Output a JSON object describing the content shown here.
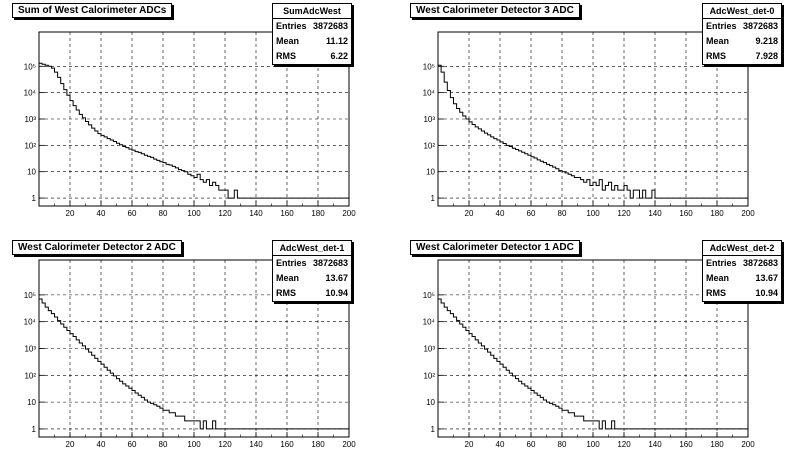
{
  "footer_text": "",
  "chart_data": [
    {
      "type": "histogram",
      "title": "Sum of West Calorimeter ADCs",
      "stats": {
        "name": "SumAdcWest",
        "entries_label": "Entries",
        "entries": "3872683",
        "mean_label": "Mean",
        "mean": "11.12",
        "rms_label": "RMS",
        "rms": "6.22"
      },
      "x_range": [
        0,
        200
      ],
      "y_range": [
        0.5,
        2000000
      ],
      "y_scale": "log",
      "x_ticks": [
        "20",
        "40",
        "60",
        "80",
        "100",
        "120",
        "140",
        "160",
        "180",
        "200"
      ],
      "y_ticks": [
        1,
        10,
        100,
        1000,
        10000,
        100000
      ],
      "y_tick_labels": [
        "1",
        "10",
        "10²",
        "10³",
        "10⁴",
        "10⁵"
      ],
      "grid": true,
      "bin_width": 2,
      "values": [
        130000,
        120000,
        110000,
        100000,
        85000,
        60000,
        38000,
        22000,
        13000,
        8000,
        5000,
        3200,
        2200,
        1500,
        1100,
        800,
        600,
        450,
        350,
        280,
        240,
        210,
        180,
        160,
        140,
        120,
        105,
        90,
        82,
        72,
        66,
        58,
        54,
        48,
        42,
        38,
        35,
        30,
        27,
        24,
        22,
        19,
        18,
        16,
        14,
        12,
        11,
        10,
        8,
        7,
        6,
        8,
        5,
        4,
        5,
        3,
        4,
        3,
        2,
        2,
        2,
        1,
        1,
        2,
        1,
        1,
        1,
        1,
        1,
        1,
        1,
        1,
        1,
        1,
        1,
        1,
        1,
        1,
        1,
        1,
        1,
        1,
        1,
        1,
        1,
        1,
        1,
        1,
        1,
        1,
        1,
        1,
        1,
        1,
        1,
        1,
        1,
        1,
        1,
        1
      ]
    },
    {
      "type": "histogram",
      "title": "West Calorimeter Detector 3 ADC",
      "stats": {
        "name": "AdcWest_det-0",
        "entries_label": "Entries",
        "entries": "3872683",
        "mean_label": "Mean",
        "mean": "9.218",
        "rms_label": "RMS",
        "rms": "7.928"
      },
      "x_range": [
        0,
        200
      ],
      "y_range": [
        0.5,
        2000000
      ],
      "y_scale": "log",
      "x_ticks": [
        "20",
        "40",
        "60",
        "80",
        "100",
        "120",
        "140",
        "160",
        "180",
        "200"
      ],
      "y_ticks": [
        1,
        10,
        100,
        1000,
        10000,
        100000
      ],
      "y_tick_labels": [
        "1",
        "10",
        "10²",
        "10³",
        "10⁴",
        "10⁵"
      ],
      "grid": true,
      "bin_width": 2,
      "values": [
        110000,
        60000,
        25000,
        12000,
        6500,
        3800,
        2500,
        1800,
        1300,
        1000,
        780,
        620,
        500,
        420,
        350,
        290,
        250,
        210,
        180,
        160,
        135,
        118,
        100,
        90,
        78,
        70,
        62,
        55,
        48,
        42,
        37,
        33,
        28,
        25,
        22,
        19,
        17,
        15,
        13,
        11,
        10,
        9,
        8,
        7,
        6,
        6,
        5,
        4,
        5,
        3,
        4,
        3,
        5,
        2,
        3,
        4,
        2,
        3,
        2,
        2,
        3,
        2,
        1,
        2,
        2,
        1,
        2,
        1,
        1,
        2,
        1,
        1,
        1,
        1,
        1,
        1,
        1,
        1,
        1,
        1,
        1,
        1,
        1,
        1,
        1,
        1,
        1,
        1,
        1,
        1,
        1,
        1,
        1,
        1,
        1,
        1,
        1,
        1,
        1,
        1
      ]
    },
    {
      "type": "histogram",
      "title": "West Calorimeter Detector 2 ADC",
      "stats": {
        "name": "AdcWest_det-1",
        "entries_label": "Entries",
        "entries": "3872683",
        "mean_label": "Mean",
        "mean": "13.67",
        "rms_label": "RMS",
        "rms": "10.94"
      },
      "x_range": [
        0,
        200
      ],
      "y_range": [
        0.5,
        2000000
      ],
      "y_scale": "log",
      "x_ticks": [
        "20",
        "40",
        "60",
        "80",
        "100",
        "120",
        "140",
        "160",
        "180",
        "200"
      ],
      "y_ticks": [
        1,
        10,
        100,
        1000,
        10000,
        100000
      ],
      "y_tick_labels": [
        "1",
        "10",
        "10²",
        "10³",
        "10⁴",
        "10⁵"
      ],
      "grid": true,
      "bin_width": 2,
      "values": [
        70000,
        50000,
        35000,
        26000,
        20000,
        15000,
        11000,
        8200,
        6200,
        4700,
        3600,
        2800,
        2100,
        1600,
        1250,
        950,
        730,
        560,
        430,
        330,
        260,
        200,
        155,
        120,
        95,
        75,
        60,
        48,
        40,
        33,
        27,
        22,
        18,
        15,
        12,
        10,
        9,
        8,
        7,
        6,
        5,
        5,
        4,
        4,
        3,
        3,
        3,
        2,
        2,
        2,
        2,
        2,
        1,
        2,
        1,
        1,
        2,
        1,
        1,
        1,
        1,
        1,
        1,
        1,
        1,
        1,
        1,
        1,
        1,
        1,
        1,
        1,
        1,
        1,
        1,
        1,
        1,
        1,
        1,
        1,
        1,
        1,
        1,
        1,
        1,
        1,
        1,
        1,
        1,
        1,
        1,
        1,
        1,
        1,
        1,
        1,
        1,
        1,
        1,
        1
      ]
    },
    {
      "type": "histogram",
      "title": "West Calorimeter Detector 1 ADC",
      "stats": {
        "name": "AdcWest_det-2",
        "entries_label": "Entries",
        "entries": "3872683",
        "mean_label": "Mean",
        "mean": "13.67",
        "rms_label": "RMS",
        "rms": "10.94"
      },
      "x_range": [
        0,
        200
      ],
      "y_range": [
        0.5,
        2000000
      ],
      "y_scale": "log",
      "x_ticks": [
        "20",
        "40",
        "60",
        "80",
        "100",
        "120",
        "140",
        "160",
        "180",
        "200"
      ],
      "y_ticks": [
        1,
        10,
        100,
        1000,
        10000,
        100000
      ],
      "y_tick_labels": [
        "1",
        "10",
        "10²",
        "10³",
        "10⁴",
        "10⁵"
      ],
      "grid": true,
      "bin_width": 2,
      "values": [
        70000,
        50000,
        35000,
        26000,
        20000,
        15000,
        11000,
        8200,
        6200,
        4700,
        3600,
        2800,
        2100,
        1600,
        1250,
        950,
        730,
        560,
        430,
        330,
        260,
        200,
        155,
        120,
        95,
        75,
        60,
        48,
        40,
        33,
        27,
        22,
        18,
        15,
        12,
        10,
        9,
        8,
        7,
        6,
        5,
        5,
        4,
        4,
        3,
        3,
        3,
        2,
        2,
        2,
        2,
        2,
        1,
        2,
        1,
        1,
        2,
        1,
        1,
        1,
        1,
        1,
        1,
        1,
        1,
        1,
        1,
        1,
        1,
        1,
        1,
        1,
        1,
        1,
        1,
        1,
        1,
        1,
        1,
        1,
        1,
        1,
        1,
        1,
        1,
        1,
        1,
        1,
        1,
        1,
        1,
        1,
        1,
        1,
        1,
        1,
        1,
        1,
        1,
        1
      ]
    }
  ]
}
